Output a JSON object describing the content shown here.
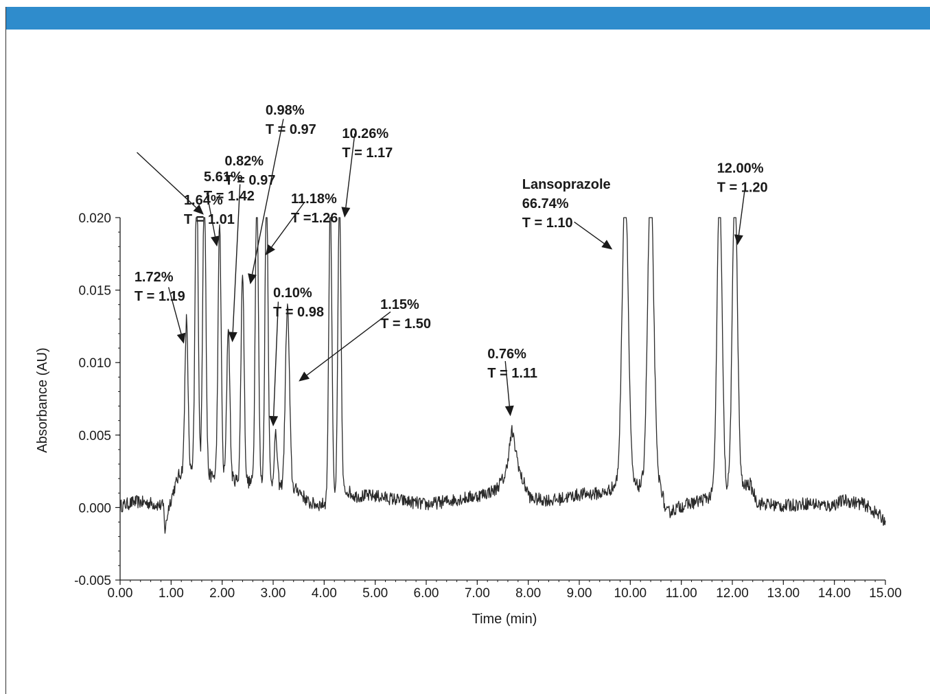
{
  "colors": {
    "header_bar": "#2f8ccc",
    "trace": "#2a2a2a",
    "axis": "#1a1a1a"
  },
  "chart_data": {
    "type": "line",
    "title": "",
    "xlabel": "Time (min)",
    "ylabel": "Absorbance (AU)",
    "xlim": [
      0,
      15
    ],
    "ylim": [
      -0.005,
      0.02
    ],
    "grid": false,
    "x_ticks": [
      "0.00",
      "1.00",
      "2.00",
      "3.00",
      "4.00",
      "5.00",
      "6.00",
      "7.00",
      "8.00",
      "9.00",
      "10.00",
      "11.00",
      "12.00",
      "13.00",
      "14.00",
      "15.00"
    ],
    "y_ticks": [
      "0.020",
      "0.015",
      "0.010",
      "0.005",
      "0.000",
      "-0.005"
    ],
    "baseline": [
      [
        0.0,
        0.0001
      ],
      [
        0.3,
        0.0004
      ],
      [
        0.6,
        0.0003
      ],
      [
        0.85,
        0.0001
      ],
      [
        0.88,
        -0.0016
      ],
      [
        0.95,
        0.0
      ],
      [
        1.05,
        0.0012
      ],
      [
        1.15,
        0.0022
      ],
      [
        1.22,
        0.0025
      ],
      [
        3.5,
        0.0012
      ],
      [
        3.7,
        0.0003
      ],
      [
        3.9,
        0.0002
      ],
      [
        4.1,
        0.0003
      ],
      [
        4.45,
        0.0012
      ],
      [
        4.6,
        0.0008
      ],
      [
        5.0,
        0.0008
      ],
      [
        5.5,
        0.0005
      ],
      [
        6.0,
        0.0002
      ],
      [
        6.5,
        0.0005
      ],
      [
        7.0,
        0.0008
      ],
      [
        7.35,
        0.0012
      ],
      [
        7.55,
        0.0022
      ],
      [
        7.68,
        0.0053
      ],
      [
        7.85,
        0.0022
      ],
      [
        8.05,
        0.0006
      ],
      [
        8.5,
        0.0005
      ],
      [
        9.0,
        0.0009
      ],
      [
        9.5,
        0.001
      ],
      [
        9.7,
        0.0015
      ],
      [
        10.6,
        0.0015
      ],
      [
        10.7,
        -0.0004
      ],
      [
        11.0,
        0.0001
      ],
      [
        11.3,
        0.0004
      ],
      [
        11.6,
        0.0008
      ],
      [
        12.35,
        0.0016
      ],
      [
        12.5,
        0.0003
      ],
      [
        13.0,
        0.0001
      ],
      [
        13.5,
        0.0003
      ],
      [
        13.9,
        0.0001
      ],
      [
        14.2,
        0.0005
      ],
      [
        14.6,
        0.0002
      ],
      [
        15.0,
        -0.0009
      ]
    ],
    "peaks": [
      {
        "rt": 1.3,
        "height": 0.0105,
        "width": 0.03
      },
      {
        "rt": 1.5,
        "height": 0.021,
        "width": 0.03
      },
      {
        "rt": 1.65,
        "height": 0.021,
        "width": 0.03
      },
      {
        "rt": 1.95,
        "height": 0.0175,
        "width": 0.03
      },
      {
        "rt": 2.12,
        "height": 0.0105,
        "width": 0.03
      },
      {
        "rt": 2.4,
        "height": 0.0145,
        "width": 0.03
      },
      {
        "rt": 2.68,
        "height": 0.021,
        "width": 0.03
      },
      {
        "rt": 2.87,
        "height": 0.021,
        "width": 0.03
      },
      {
        "rt": 3.05,
        "height": 0.0035,
        "width": 0.03
      },
      {
        "rt": 3.28,
        "height": 0.0125,
        "width": 0.04
      },
      {
        "rt": 4.12,
        "height": 0.021,
        "width": 0.03
      },
      {
        "rt": 4.3,
        "height": 0.021,
        "width": 0.03
      },
      {
        "rt": 9.9,
        "height": 0.021,
        "width": 0.06
      },
      {
        "rt": 10.4,
        "height": 0.021,
        "width": 0.06
      },
      {
        "rt": 11.75,
        "height": 0.021,
        "width": 0.05
      },
      {
        "rt": 12.05,
        "height": 0.021,
        "width": 0.05
      }
    ],
    "annotations": [
      {
        "lines": [
          "5.61%",
          "T = 1.42"
        ],
        "text_x": 1.64,
        "text_y": 0.0225,
        "arrow_from": [
          0.33,
          0.0245
        ],
        "arrow_to": [
          1.64,
          0.0202
        ]
      },
      {
        "lines": [
          "1.64%",
          "T = 1.01"
        ],
        "text_x": 1.25,
        "text_y": 0.0209,
        "arrow_from": [
          1.7,
          0.0217
        ],
        "arrow_to": [
          1.9,
          0.018
        ]
      },
      {
        "lines": [
          "0.82%",
          "T = 0.97"
        ],
        "text_x": 2.05,
        "text_y": 0.0236,
        "arrow_from": [
          2.35,
          0.0223
        ],
        "arrow_to": [
          2.2,
          0.0114
        ]
      },
      {
        "lines": [
          "0.98%",
          "T = 0.97"
        ],
        "text_x": 2.85,
        "text_y": 0.0271,
        "arrow_from": [
          3.2,
          0.0268
        ],
        "arrow_to": [
          2.55,
          0.0154
        ]
      },
      {
        "lines": [
          "11.18%",
          "T =1.26"
        ],
        "text_x": 3.35,
        "text_y": 0.021,
        "arrow_from": [
          3.6,
          0.021
        ],
        "arrow_to": [
          2.85,
          0.0174
        ]
      },
      {
        "lines": [
          "10.26%",
          "T = 1.17"
        ],
        "text_x": 4.35,
        "text_y": 0.0255,
        "arrow_from": [
          4.6,
          0.0258
        ],
        "arrow_to": [
          4.4,
          0.02
        ]
      },
      {
        "lines": [
          "1.72%",
          "T = 1.19"
        ],
        "text_x": 0.28,
        "text_y": 0.0156,
        "arrow_from": [
          0.95,
          0.0152
        ],
        "arrow_to": [
          1.25,
          0.0113
        ]
      },
      {
        "lines": [
          "0.10%",
          "T = 0.98"
        ],
        "text_x": 3.0,
        "text_y": 0.0145,
        "arrow_from": [
          3.1,
          0.0142
        ],
        "arrow_to": [
          3.0,
          0.0056
        ]
      },
      {
        "lines": [
          "1.15%",
          "T = 1.50"
        ],
        "text_x": 5.1,
        "text_y": 0.0137,
        "arrow_from": [
          5.3,
          0.0135
        ],
        "arrow_to": [
          3.5,
          0.0087
        ]
      },
      {
        "lines": [
          "0.76%",
          "T = 1.11"
        ],
        "text_x": 7.2,
        "text_y": 0.0103,
        "arrow_from": [
          7.55,
          0.0101
        ],
        "arrow_to": [
          7.65,
          0.0063
        ]
      },
      {
        "lines": [
          "Lansoprazole",
          "66.74%",
          "T = 1.10"
        ],
        "text_x": 7.88,
        "text_y": 0.022,
        "arrow_from": [
          8.9,
          0.0197
        ],
        "arrow_to": [
          9.65,
          0.0178
        ]
      },
      {
        "lines": [
          "12.00%",
          "T = 1.20"
        ],
        "text_x": 11.7,
        "text_y": 0.0231,
        "arrow_from": [
          12.25,
          0.0221
        ],
        "arrow_to": [
          12.1,
          0.0181
        ]
      }
    ]
  }
}
